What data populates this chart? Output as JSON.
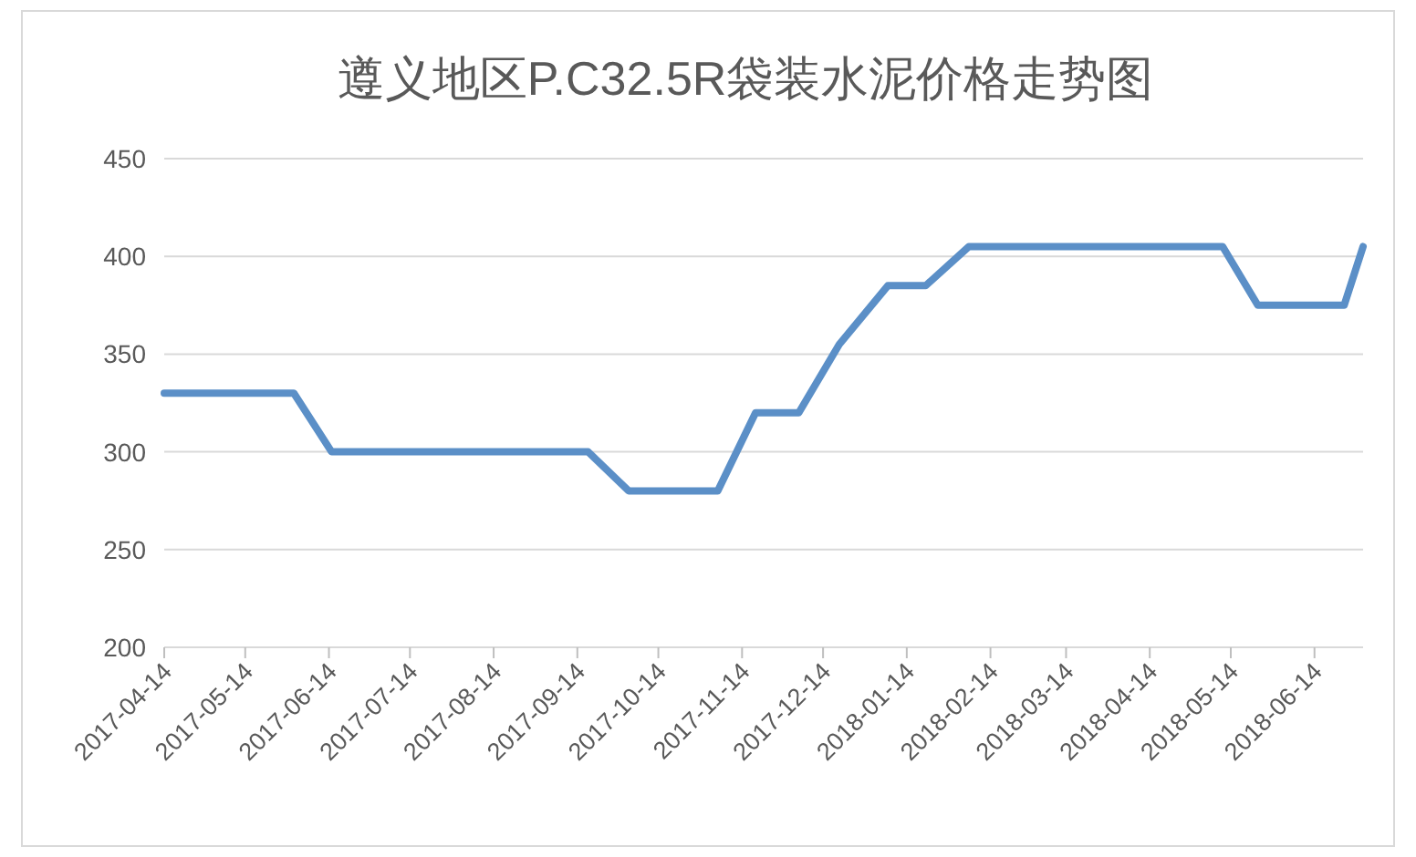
{
  "chart_data": {
    "type": "line",
    "title": "遵义地区P.C32.5R袋装水泥价格走势图",
    "x": [
      "2017-04-14",
      "2017-06-01",
      "2017-06-15",
      "2017-09-18",
      "2017-10-03",
      "2017-11-05",
      "2017-11-19",
      "2017-12-05",
      "2017-12-20",
      "2018-01-07",
      "2018-01-21",
      "2018-02-06",
      "2018-05-11",
      "2018-05-24",
      "2018-06-25",
      "2018-07-02"
    ],
    "series": [
      {
        "color": "#5b8fc7",
        "values": [
          330,
          330,
          300,
          300,
          280,
          280,
          320,
          320,
          355,
          385,
          385,
          405,
          405,
          375,
          375,
          405
        ]
      }
    ],
    "xlim": [
      "2017-04-14",
      "2018-07-02"
    ],
    "xticks": [
      "2017-04-14",
      "2017-05-14",
      "2017-06-14",
      "2017-07-14",
      "2017-08-14",
      "2017-09-14",
      "2017-10-14",
      "2017-11-14",
      "2017-12-14",
      "2018-01-14",
      "2018-02-14",
      "2018-03-14",
      "2018-04-14",
      "2018-05-14",
      "2018-06-14"
    ],
    "ylim": [
      200,
      450
    ],
    "yticks": [
      200,
      250,
      300,
      350,
      400,
      450
    ],
    "grid": "y",
    "marker": "none",
    "line_style": "solid"
  }
}
